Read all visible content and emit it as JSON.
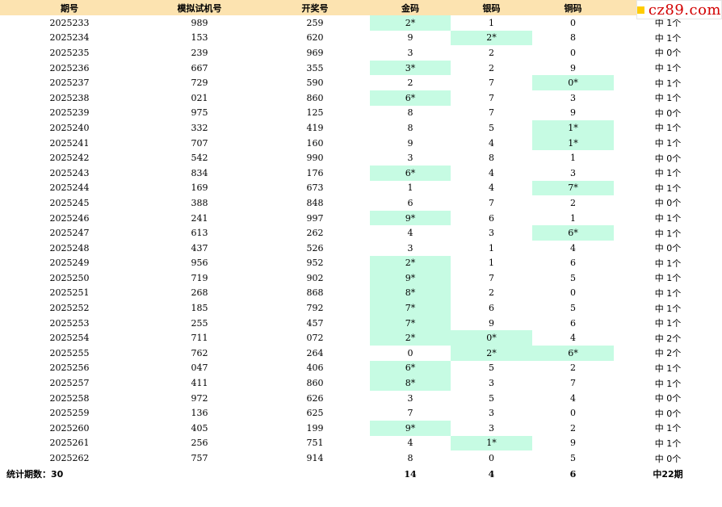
{
  "headers": [
    "期号",
    "模拟试机号",
    "开奖号",
    "金码",
    "银码",
    "铜码",
    ""
  ],
  "brand": "cz89.com",
  "rows": [
    {
      "period": "2025233",
      "sim": "989",
      "draw": "259",
      "gold": "2*",
      "silver": "1",
      "bronze": "0",
      "result": "中 1个",
      "hit_gold": true,
      "hit_silver": false,
      "hit_bronze": false
    },
    {
      "period": "2025234",
      "sim": "153",
      "draw": "620",
      "gold": "9",
      "silver": "2*",
      "bronze": "8",
      "result": "中 1个",
      "hit_gold": false,
      "hit_silver": true,
      "hit_bronze": false
    },
    {
      "period": "2025235",
      "sim": "239",
      "draw": "969",
      "gold": "3",
      "silver": "2",
      "bronze": "0",
      "result": "中 0个",
      "hit_gold": false,
      "hit_silver": false,
      "hit_bronze": false
    },
    {
      "period": "2025236",
      "sim": "667",
      "draw": "355",
      "gold": "3*",
      "silver": "2",
      "bronze": "9",
      "result": "中 1个",
      "hit_gold": true,
      "hit_silver": false,
      "hit_bronze": false
    },
    {
      "period": "2025237",
      "sim": "729",
      "draw": "590",
      "gold": "2",
      "silver": "7",
      "bronze": "0*",
      "result": "中 1个",
      "hit_gold": false,
      "hit_silver": false,
      "hit_bronze": true
    },
    {
      "period": "2025238",
      "sim": "021",
      "draw": "860",
      "gold": "6*",
      "silver": "7",
      "bronze": "3",
      "result": "中 1个",
      "hit_gold": true,
      "hit_silver": false,
      "hit_bronze": false
    },
    {
      "period": "2025239",
      "sim": "975",
      "draw": "125",
      "gold": "8",
      "silver": "7",
      "bronze": "9",
      "result": "中 0个",
      "hit_gold": false,
      "hit_silver": false,
      "hit_bronze": false
    },
    {
      "period": "2025240",
      "sim": "332",
      "draw": "419",
      "gold": "8",
      "silver": "5",
      "bronze": "1*",
      "result": "中 1个",
      "hit_gold": false,
      "hit_silver": false,
      "hit_bronze": true
    },
    {
      "period": "2025241",
      "sim": "707",
      "draw": "160",
      "gold": "9",
      "silver": "4",
      "bronze": "1*",
      "result": "中 1个",
      "hit_gold": false,
      "hit_silver": false,
      "hit_bronze": true
    },
    {
      "period": "2025242",
      "sim": "542",
      "draw": "990",
      "gold": "3",
      "silver": "8",
      "bronze": "1",
      "result": "中 0个",
      "hit_gold": false,
      "hit_silver": false,
      "hit_bronze": false
    },
    {
      "period": "2025243",
      "sim": "834",
      "draw": "176",
      "gold": "6*",
      "silver": "4",
      "bronze": "3",
      "result": "中 1个",
      "hit_gold": true,
      "hit_silver": false,
      "hit_bronze": false
    },
    {
      "period": "2025244",
      "sim": "169",
      "draw": "673",
      "gold": "1",
      "silver": "4",
      "bronze": "7*",
      "result": "中 1个",
      "hit_gold": false,
      "hit_silver": false,
      "hit_bronze": true
    },
    {
      "period": "2025245",
      "sim": "388",
      "draw": "848",
      "gold": "6",
      "silver": "7",
      "bronze": "2",
      "result": "中 0个",
      "hit_gold": false,
      "hit_silver": false,
      "hit_bronze": false
    },
    {
      "period": "2025246",
      "sim": "241",
      "draw": "997",
      "gold": "9*",
      "silver": "6",
      "bronze": "1",
      "result": "中 1个",
      "hit_gold": true,
      "hit_silver": false,
      "hit_bronze": false
    },
    {
      "period": "2025247",
      "sim": "613",
      "draw": "262",
      "gold": "4",
      "silver": "3",
      "bronze": "6*",
      "result": "中 1个",
      "hit_gold": false,
      "hit_silver": false,
      "hit_bronze": true
    },
    {
      "period": "2025248",
      "sim": "437",
      "draw": "526",
      "gold": "3",
      "silver": "1",
      "bronze": "4",
      "result": "中 0个",
      "hit_gold": false,
      "hit_silver": false,
      "hit_bronze": false
    },
    {
      "period": "2025249",
      "sim": "956",
      "draw": "952",
      "gold": "2*",
      "silver": "1",
      "bronze": "6",
      "result": "中 1个",
      "hit_gold": true,
      "hit_silver": false,
      "hit_bronze": false
    },
    {
      "period": "2025250",
      "sim": "719",
      "draw": "902",
      "gold": "9*",
      "silver": "7",
      "bronze": "5",
      "result": "中 1个",
      "hit_gold": true,
      "hit_silver": false,
      "hit_bronze": false
    },
    {
      "period": "2025251",
      "sim": "268",
      "draw": "868",
      "gold": "8*",
      "silver": "2",
      "bronze": "0",
      "result": "中 1个",
      "hit_gold": true,
      "hit_silver": false,
      "hit_bronze": false
    },
    {
      "period": "2025252",
      "sim": "185",
      "draw": "792",
      "gold": "7*",
      "silver": "6",
      "bronze": "5",
      "result": "中 1个",
      "hit_gold": true,
      "hit_silver": false,
      "hit_bronze": false
    },
    {
      "period": "2025253",
      "sim": "255",
      "draw": "457",
      "gold": "7*",
      "silver": "9",
      "bronze": "6",
      "result": "中 1个",
      "hit_gold": true,
      "hit_silver": false,
      "hit_bronze": false
    },
    {
      "period": "2025254",
      "sim": "711",
      "draw": "072",
      "gold": "2*",
      "silver": "0*",
      "bronze": "4",
      "result": "中 2个",
      "hit_gold": true,
      "hit_silver": true,
      "hit_bronze": false
    },
    {
      "period": "2025255",
      "sim": "762",
      "draw": "264",
      "gold": "0",
      "silver": "2*",
      "bronze": "6*",
      "result": "中 2个",
      "hit_gold": false,
      "hit_silver": true,
      "hit_bronze": true
    },
    {
      "period": "2025256",
      "sim": "047",
      "draw": "406",
      "gold": "6*",
      "silver": "5",
      "bronze": "2",
      "result": "中 1个",
      "hit_gold": true,
      "hit_silver": false,
      "hit_bronze": false
    },
    {
      "period": "2025257",
      "sim": "411",
      "draw": "860",
      "gold": "8*",
      "silver": "3",
      "bronze": "7",
      "result": "中 1个",
      "hit_gold": true,
      "hit_silver": false,
      "hit_bronze": false
    },
    {
      "period": "2025258",
      "sim": "972",
      "draw": "626",
      "gold": "3",
      "silver": "5",
      "bronze": "4",
      "result": "中 0个",
      "hit_gold": false,
      "hit_silver": false,
      "hit_bronze": false
    },
    {
      "period": "2025259",
      "sim": "136",
      "draw": "625",
      "gold": "7",
      "silver": "3",
      "bronze": "0",
      "result": "中 0个",
      "hit_gold": false,
      "hit_silver": false,
      "hit_bronze": false
    },
    {
      "period": "2025260",
      "sim": "405",
      "draw": "199",
      "gold": "9*",
      "silver": "3",
      "bronze": "2",
      "result": "中 1个",
      "hit_gold": true,
      "hit_silver": false,
      "hit_bronze": false
    },
    {
      "period": "2025261",
      "sim": "256",
      "draw": "751",
      "gold": "4",
      "silver": "1*",
      "bronze": "9",
      "result": "中 1个",
      "hit_gold": false,
      "hit_silver": true,
      "hit_bronze": false
    },
    {
      "period": "2025262",
      "sim": "757",
      "draw": "914",
      "gold": "8",
      "silver": "0",
      "bronze": "5",
      "result": "中 0个",
      "hit_gold": false,
      "hit_silver": false,
      "hit_bronze": false
    }
  ],
  "footer": {
    "label": "统计期数：30",
    "gold_total": "14",
    "silver_total": "4",
    "bronze_total": "6",
    "result_total": "中22期"
  },
  "colors": {
    "header_bg": "#fce3b0",
    "hit_bg": "#c6fbe3",
    "brand_text": "#d20000",
    "brand_square": "#ffcc00"
  }
}
